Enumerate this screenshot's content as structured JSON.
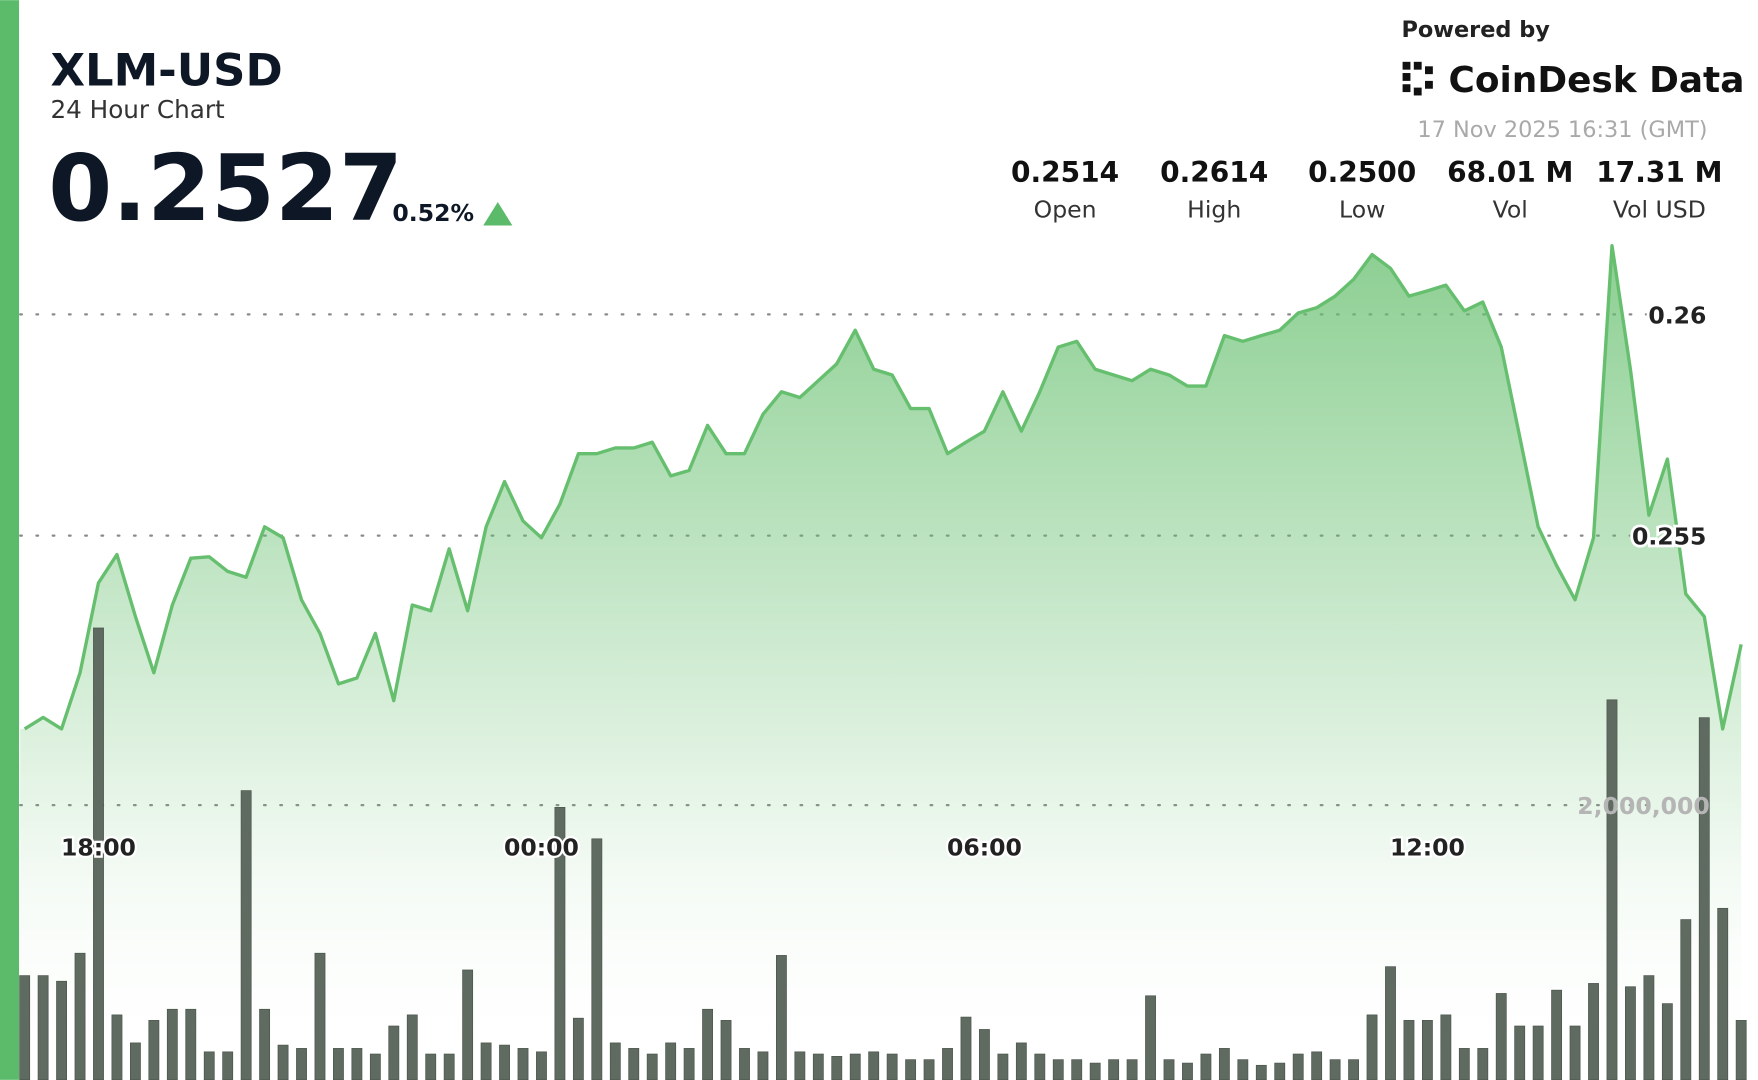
{
  "header": {
    "title": "XLM-USD",
    "subtitle": "24 Hour Chart",
    "price": "0.2527",
    "change": "0.52%",
    "powered_by": "Powered by",
    "brand": "CoinDesk Data",
    "timestamp": "17 Nov 2025 16:31 (GMT)"
  },
  "stats": [
    {
      "value": "0.2514",
      "label": "Open"
    },
    {
      "value": "0.2614",
      "label": "High"
    },
    {
      "value": "0.2500",
      "label": "Low"
    },
    {
      "value": "68.01 M",
      "label": "Vol"
    },
    {
      "value": "17.31 M",
      "label": "Vol USD"
    }
  ],
  "chart_data": {
    "type": "line",
    "categories": [
      null,
      null,
      null,
      null,
      "18:00",
      null,
      null,
      null,
      null,
      null,
      null,
      null,
      null,
      null,
      null,
      null,
      null,
      null,
      null,
      null,
      null,
      null,
      null,
      null,
      null,
      null,
      null,
      null,
      "00:00",
      null,
      null,
      null,
      null,
      null,
      null,
      null,
      null,
      null,
      null,
      null,
      null,
      null,
      null,
      null,
      null,
      null,
      null,
      null,
      null,
      null,
      null,
      null,
      "06:00",
      null,
      null,
      null,
      null,
      null,
      null,
      null,
      null,
      null,
      null,
      null,
      null,
      null,
      null,
      null,
      null,
      null,
      null,
      null,
      null,
      null,
      null,
      null,
      "12:00",
      null,
      null,
      null,
      null,
      null,
      null,
      null,
      null,
      null,
      null,
      null,
      null,
      null,
      null,
      null,
      null,
      null
    ],
    "series": [
      {
        "color": "#66bf6e",
        "values": [
          0.25063,
          0.25089,
          0.25063,
          0.2519,
          0.25393,
          0.25457,
          0.25317,
          0.2519,
          0.25343,
          0.25449,
          0.25452,
          0.25419,
          0.25406,
          0.2552,
          0.25495,
          0.25355,
          0.25279,
          0.25165,
          0.25178,
          0.25279,
          0.25127,
          0.25343,
          0.2533,
          0.2547,
          0.2533,
          0.2552,
          0.25622,
          0.25533,
          0.25495,
          0.25571,
          0.25685,
          0.25685,
          0.25698,
          0.25698,
          0.25711,
          0.25635,
          0.25647,
          0.25749,
          0.25685,
          0.25685,
          0.25774,
          0.25825,
          0.25812,
          0.2585,
          0.25888,
          0.25964,
          0.25876,
          0.25863,
          0.25787,
          0.25787,
          0.25685,
          0.25711,
          0.25736,
          0.25825,
          0.25736,
          0.25825,
          0.25926,
          0.25939,
          0.25876,
          0.25863,
          0.2585,
          0.25876,
          0.25863,
          0.25838,
          0.25838,
          0.25952,
          0.25939,
          0.25952,
          0.25964,
          0.26003,
          0.26015,
          0.26041,
          0.26079,
          0.26135,
          0.26104,
          0.26041,
          0.26053,
          0.26066,
          0.26008,
          0.26028,
          0.25926,
          0.25723,
          0.2552,
          0.25432,
          0.25355,
          0.25495,
          0.26155,
          0.25876,
          0.25546,
          0.25673,
          0.25368,
          0.25317,
          0.25063,
          0.25254
        ]
      },
      {
        "type": "bar",
        "axis": "y2",
        "color": "#5f6a60",
        "values": [
          759000,
          759000,
          718000,
          922000,
          3290000,
          473000,
          269000,
          433000,
          514000,
          514000,
          204000,
          204000,
          2106000,
          514000,
          253000,
          229000,
          922000,
          229000,
          229000,
          188000,
          392000,
          473000,
          188000,
          188000,
          800000,
          269000,
          253000,
          229000,
          204000,
          1984000,
          449000,
          1755000,
          269000,
          229000,
          188000,
          269000,
          229000,
          514000,
          433000,
          229000,
          204000,
          906000,
          204000,
          188000,
          171000,
          188000,
          204000,
          188000,
          147000,
          147000,
          229000,
          457000,
          367000,
          188000,
          269000,
          188000,
          147000,
          147000,
          122000,
          147000,
          147000,
          612000,
          147000,
          122000,
          188000,
          229000,
          147000,
          106000,
          122000,
          188000,
          204000,
          147000,
          147000,
          473000,
          824000,
          433000,
          433000,
          473000,
          229000,
          229000,
          629000,
          392000,
          392000,
          653000,
          392000,
          702000,
          2767000,
          678000,
          759000,
          555000,
          1167000,
          2637000,
          1249000,
          433000
        ]
      }
    ],
    "ylim": [
      0.2427,
      0.2671
    ],
    "yticks": [
      0.255,
      0.26
    ],
    "y2lim": [
      0,
      7861000
    ],
    "y2ticks": [
      {
        "value": 2000000,
        "label": "2,000,000"
      }
    ],
    "grid": true
  }
}
